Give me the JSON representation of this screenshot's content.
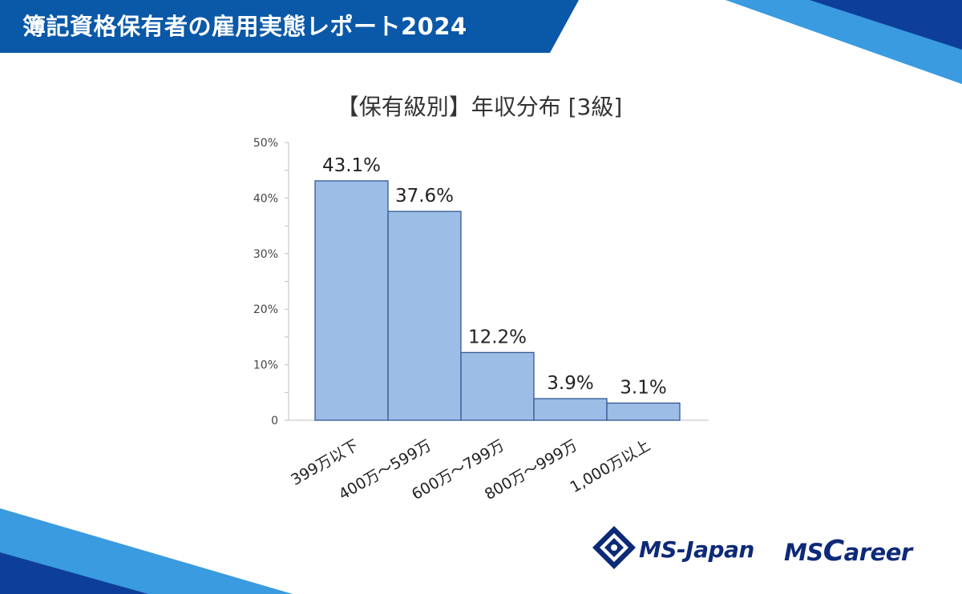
{
  "header": {
    "title": "簿記資格保有者の雇用実態レポート2024"
  },
  "logos": {
    "msjapan": "MS-Japan",
    "mscareer_prefix": "MS",
    "mscareer_c": "C",
    "mscareer_rest": "areer"
  },
  "chart_data": {
    "type": "bar",
    "title": "【保有級別】年収分布 [3級]",
    "categories": [
      "399万以下",
      "400万～599万",
      "600万～799万",
      "800万～999万",
      "1,000万以上"
    ],
    "values": [
      43.1,
      37.6,
      12.2,
      3.9,
      3.1
    ],
    "value_labels": [
      "43.1%",
      "37.6%",
      "12.2%",
      "3.9%",
      "3.1%"
    ],
    "y_ticks": [
      {
        "value": 0,
        "label": "0"
      },
      {
        "value": 10,
        "label": "10%"
      },
      {
        "value": 20,
        "label": "20%"
      },
      {
        "value": 30,
        "label": "30%"
      },
      {
        "value": 40,
        "label": "40%"
      },
      {
        "value": 50,
        "label": "50%"
      }
    ],
    "ylim": [
      0,
      50
    ],
    "grid": false,
    "bar_color": "#9bbde6",
    "bar_edge_color": "#2a4f8c"
  },
  "colors": {
    "header_blue": "#0a58a8",
    "dark_blue": "#0d2a78",
    "light_blue": "#2f8fd6"
  }
}
